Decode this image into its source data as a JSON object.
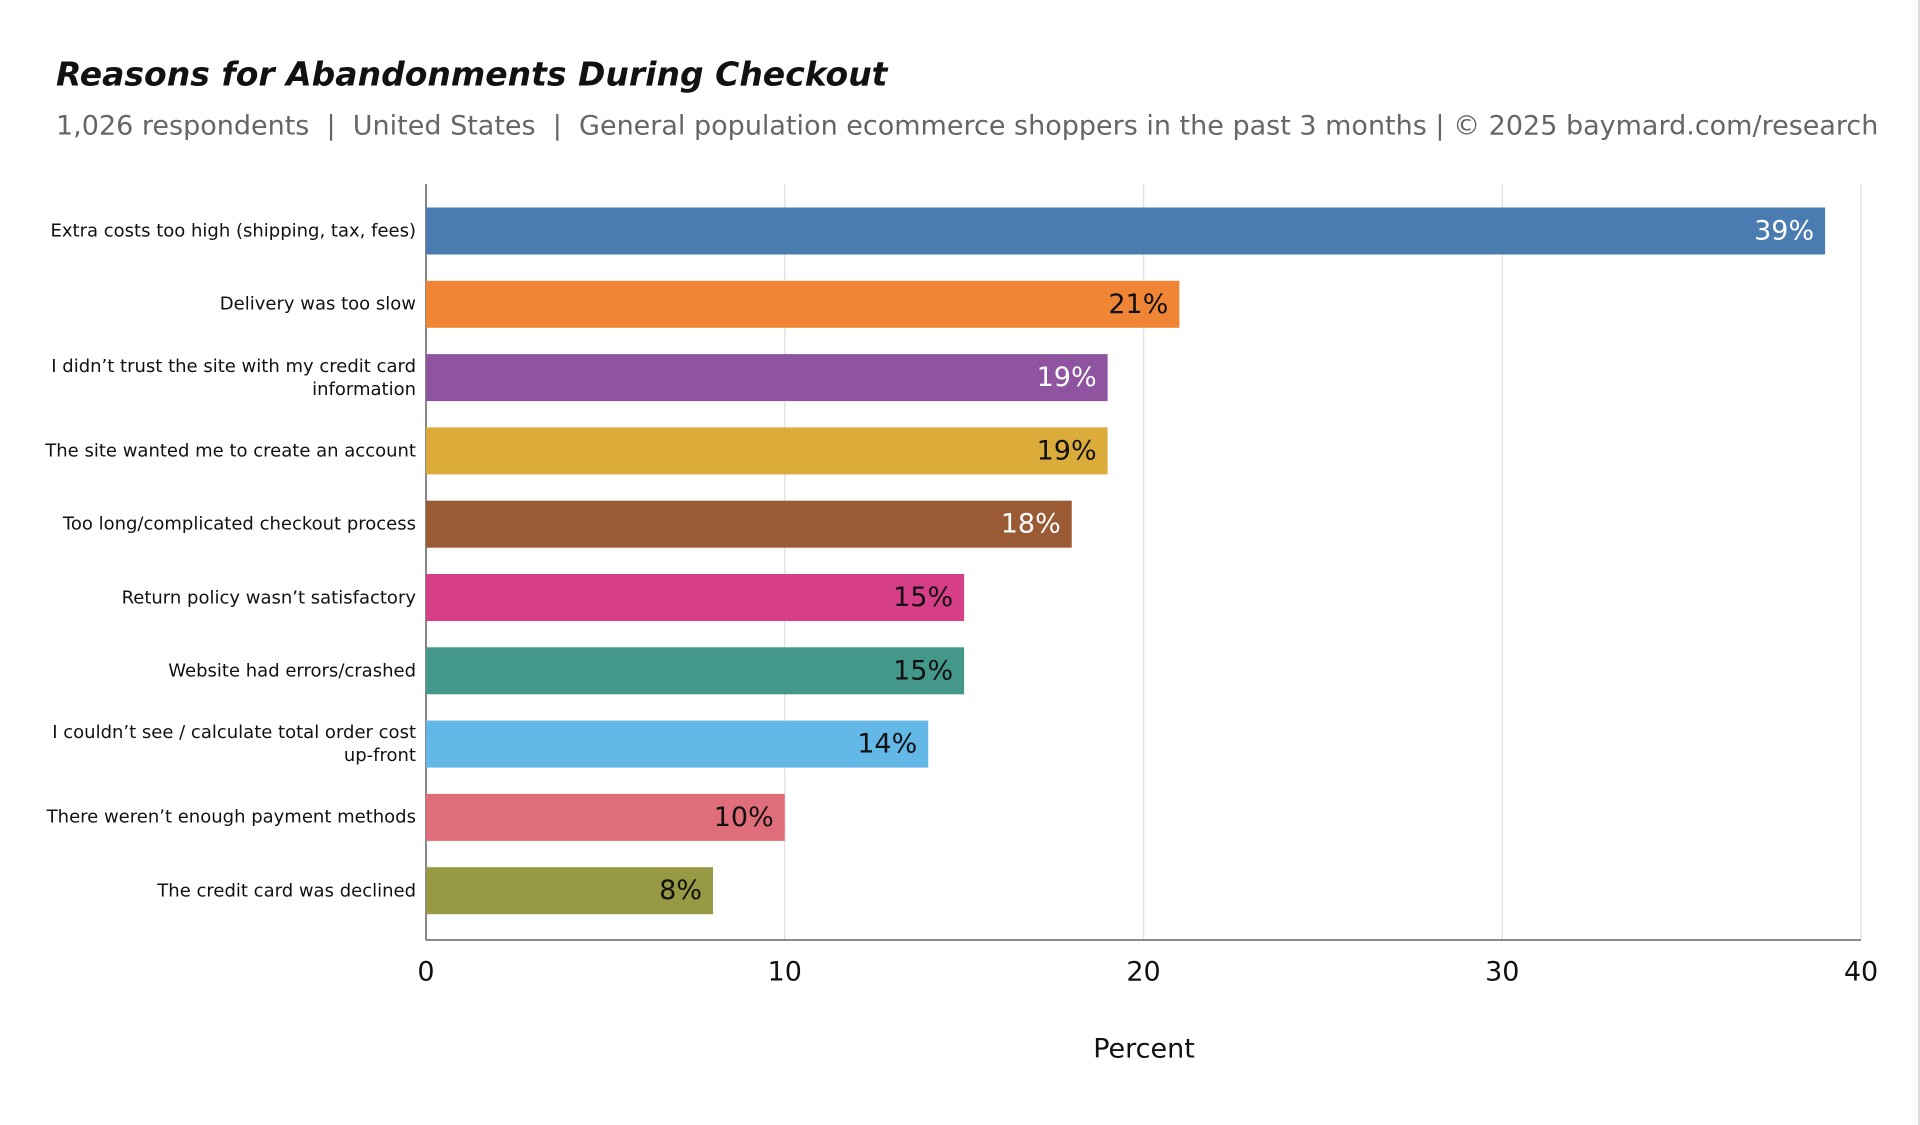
{
  "chart_data": {
    "type": "bar",
    "orientation": "horizontal",
    "title": "Reasons for Abandonments During Checkout",
    "subtitle": "1,026 respondents  |  United States  |  General population ecommerce shoppers in the past 3 months | © 2025 baymard.com/research",
    "categories": [
      "Extra costs too high (shipping, tax, fees)",
      "Delivery was too slow",
      "I didn’t trust the site with my credit card information",
      "The site wanted me to create an account",
      "Too long/complicated checkout process",
      "Return policy wasn’t satisfactory",
      "Website had errors/crashed",
      "I couldn’t see / calculate total order cost up-front",
      "There weren’t enough payment methods",
      "The credit card was declined"
    ],
    "values": [
      39,
      21,
      19,
      19,
      18,
      15,
      15,
      14,
      10,
      8
    ],
    "value_labels": [
      "39%",
      "21%",
      "19%",
      "19%",
      "18%",
      "15%",
      "15%",
      "14%",
      "10%",
      "8%"
    ],
    "colors": [
      "#4a7bb1",
      "#ef8535",
      "#8f54a0",
      "#dcac3a",
      "#9a5a34",
      "#d63e88",
      "#43988a",
      "#63b8e8",
      "#e06d7a",
      "#979944"
    ],
    "label_colors": [
      "#ffffff",
      "#111111",
      "#ffffff",
      "#111111",
      "#ffffff",
      "#111111",
      "#111111",
      "#111111",
      "#111111",
      "#111111"
    ],
    "xlabel": "Percent",
    "xlim": [
      0,
      40
    ],
    "xticks": [
      0,
      10,
      20,
      30,
      40
    ],
    "grid": true
  }
}
